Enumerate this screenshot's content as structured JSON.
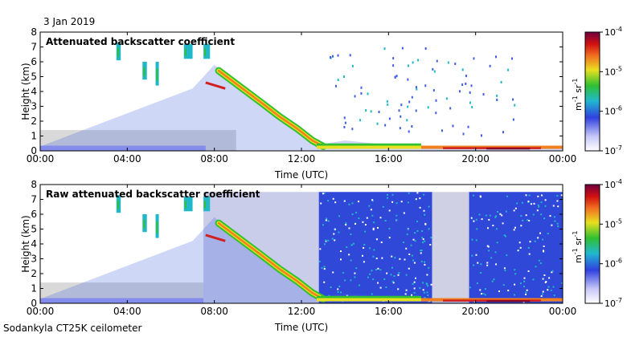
{
  "date": "3 Jan 2019",
  "footer": "Sodankyla CT25K ceilometer",
  "colors": {
    "noise": "#d9d9d9",
    "surface": "#9b9bf0",
    "blue": "#3f5fe0",
    "cyan": "#20b8c8",
    "green": "#30c030",
    "yellow": "#e8e020",
    "orange": "#f08020",
    "red": "#d02020",
    "darkred": "#800020"
  },
  "chart_data": [
    {
      "type": "heatmap",
      "title": "Attenuated backscatter coefficient",
      "xlabel": "Time (UTC)",
      "ylabel": "Height (km)",
      "x_ticks": [
        "00:00",
        "04:00",
        "08:00",
        "12:00",
        "16:00",
        "20:00",
        "00:00"
      ],
      "y_ticks": [
        "0",
        "1",
        "2",
        "3",
        "4",
        "5",
        "6",
        "7",
        "8"
      ],
      "xlim_hours": [
        0,
        24
      ],
      "ylim_km": [
        0,
        8
      ],
      "colorbar": {
        "scale": "log",
        "range": [
          1e-07,
          0.0001
        ],
        "labels": [
          "10",
          "10",
          "10",
          "10"
        ],
        "exponents": [
          "-4",
          "-5",
          "-6",
          "-7"
        ],
        "units": {
          "base1": "m",
          "exp1": "-1",
          "base2": " sr",
          "exp2": "-1"
        }
      },
      "boundary_layer_top_km": [
        [
          0.0,
          0.3
        ],
        [
          7.0,
          4.2
        ],
        [
          8.0,
          5.8
        ],
        [
          9.0,
          4.6
        ],
        [
          10.0,
          3.6
        ],
        [
          11.0,
          2.4
        ],
        [
          12.0,
          1.3
        ],
        [
          12.7,
          0.4
        ],
        [
          14.0,
          0.7
        ],
        [
          16.0,
          0.4
        ],
        [
          18.0,
          0.3
        ],
        [
          24.0,
          0.2
        ]
      ],
      "noise_clutter": false
    },
    {
      "type": "heatmap",
      "title": "Raw attenuated backscatter coefficient",
      "xlabel": "Time (UTC)",
      "ylabel": "Height (km)",
      "x_ticks": [
        "00:00",
        "04:00",
        "08:00",
        "12:00",
        "16:00",
        "20:00",
        "00:00"
      ],
      "y_ticks": [
        "0",
        "1",
        "2",
        "3",
        "4",
        "5",
        "6",
        "7",
        "8"
      ],
      "xlim_hours": [
        0,
        24
      ],
      "ylim_km": [
        0,
        8
      ],
      "colorbar": {
        "scale": "log",
        "range": [
          1e-07,
          0.0001
        ],
        "labels": [
          "10",
          "10",
          "10",
          "10"
        ],
        "exponents": [
          "-4",
          "-5",
          "-6",
          "-7"
        ],
        "units": {
          "base1": "m",
          "exp1": "-1",
          "base2": " sr",
          "exp2": "-1"
        }
      },
      "boundary_layer_top_km": [
        [
          0.0,
          0.3
        ],
        [
          7.0,
          4.2
        ],
        [
          8.0,
          5.8
        ],
        [
          9.0,
          4.6
        ],
        [
          10.0,
          3.6
        ],
        [
          11.0,
          2.4
        ],
        [
          12.0,
          1.3
        ],
        [
          12.7,
          0.4
        ],
        [
          14.0,
          0.7
        ],
        [
          16.0,
          0.4
        ],
        [
          18.0,
          0.3
        ],
        [
          24.0,
          0.2
        ]
      ],
      "noise_clutter": true
    }
  ]
}
